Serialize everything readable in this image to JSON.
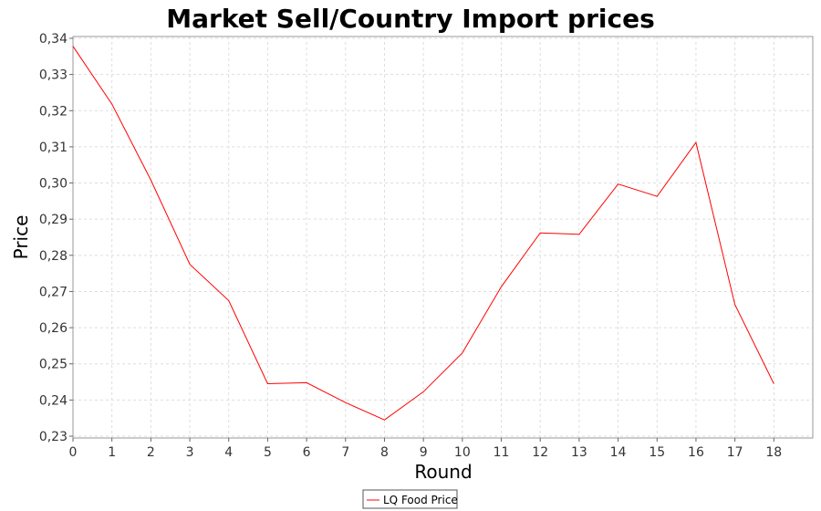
{
  "chart_data": {
    "type": "line",
    "title": "Market Sell/Country Import prices",
    "xlabel": "Round",
    "ylabel": "Price",
    "xlim": [
      0,
      19
    ],
    "ylim": [
      0.2295,
      0.3405
    ],
    "x_ticks": [
      "0",
      "1",
      "2",
      "3",
      "4",
      "5",
      "6",
      "7",
      "8",
      "9",
      "10",
      "11",
      "12",
      "13",
      "14",
      "15",
      "16",
      "17",
      "18"
    ],
    "y_ticks": [
      "0,23",
      "0,24",
      "0,25",
      "0,26",
      "0,27",
      "0,28",
      "0,29",
      "0,30",
      "0,31",
      "0,32",
      "0,33",
      "0,34"
    ],
    "grid": true,
    "legend_position": "bottom-center",
    "series": [
      {
        "name": "LQ Food Price",
        "color": "#ff0000",
        "x": [
          0,
          1,
          2,
          3,
          4,
          5,
          6,
          7,
          8,
          9,
          10,
          11,
          12,
          13,
          14,
          15,
          16,
          17,
          18
        ],
        "values": [
          0.3378,
          0.3218,
          0.3008,
          0.2775,
          0.2675,
          0.2445,
          0.2448,
          0.2393,
          0.2345,
          0.2423,
          0.253,
          0.2713,
          0.2862,
          0.2858,
          0.2997,
          0.2963,
          0.3112,
          0.2664,
          0.2445
        ]
      }
    ]
  }
}
